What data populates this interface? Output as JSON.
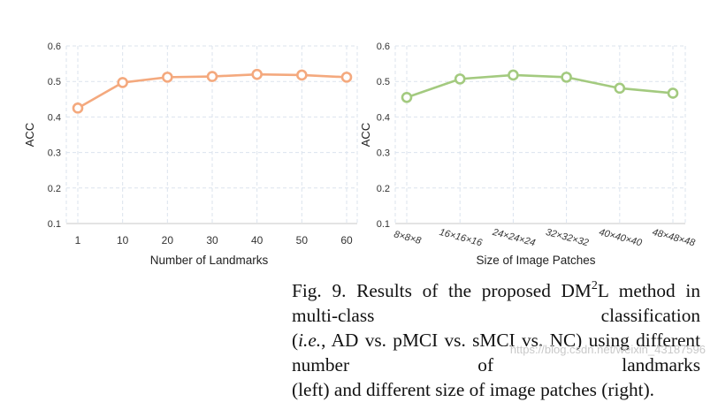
{
  "chart_data": [
    {
      "type": "line",
      "categories": [
        "1",
        "10",
        "20",
        "30",
        "40",
        "50",
        "60"
      ],
      "values": [
        0.425,
        0.497,
        0.512,
        0.514,
        0.52,
        0.518,
        0.512
      ],
      "title": "",
      "xlabel": "Number of Landmarks",
      "ylabel": "ACC",
      "ylim": [
        0.1,
        0.6
      ],
      "yticks": [
        "0.1",
        "0.2",
        "0.3",
        "0.4",
        "0.5",
        "0.6"
      ],
      "color": "#f4a97e",
      "grid": true,
      "xtick_rotation": 0
    },
    {
      "type": "line",
      "categories": [
        "8×8×8",
        "16×16×16",
        "24×24×24",
        "32×32×32",
        "40×40×40",
        "48×48×48"
      ],
      "values": [
        0.455,
        0.507,
        0.518,
        0.512,
        0.481,
        0.467
      ],
      "title": "",
      "xlabel": "Size of Image Patches",
      "ylabel": "ACC",
      "ylim": [
        0.1,
        0.6
      ],
      "yticks": [
        "0.1",
        "0.2",
        "0.3",
        "0.4",
        "0.5",
        "0.6"
      ],
      "color": "#a3ca7f",
      "grid": true,
      "xtick_rotation": 15
    }
  ],
  "caption": {
    "line1_prefix": "Fig. 9.  Results of the proposed DM",
    "line1_sup": "2",
    "line1_suffix": "L method in multi-class classification",
    "line2_open": "(",
    "line2_italic": "i.e.",
    "line2_rest": ", AD vs. pMCI vs. sMCI vs. NC) using different number of landmarks",
    "line3": "(left) and different size of image patches (right)."
  },
  "watermark": "https://blog.csdn.net/weixin_43187596"
}
